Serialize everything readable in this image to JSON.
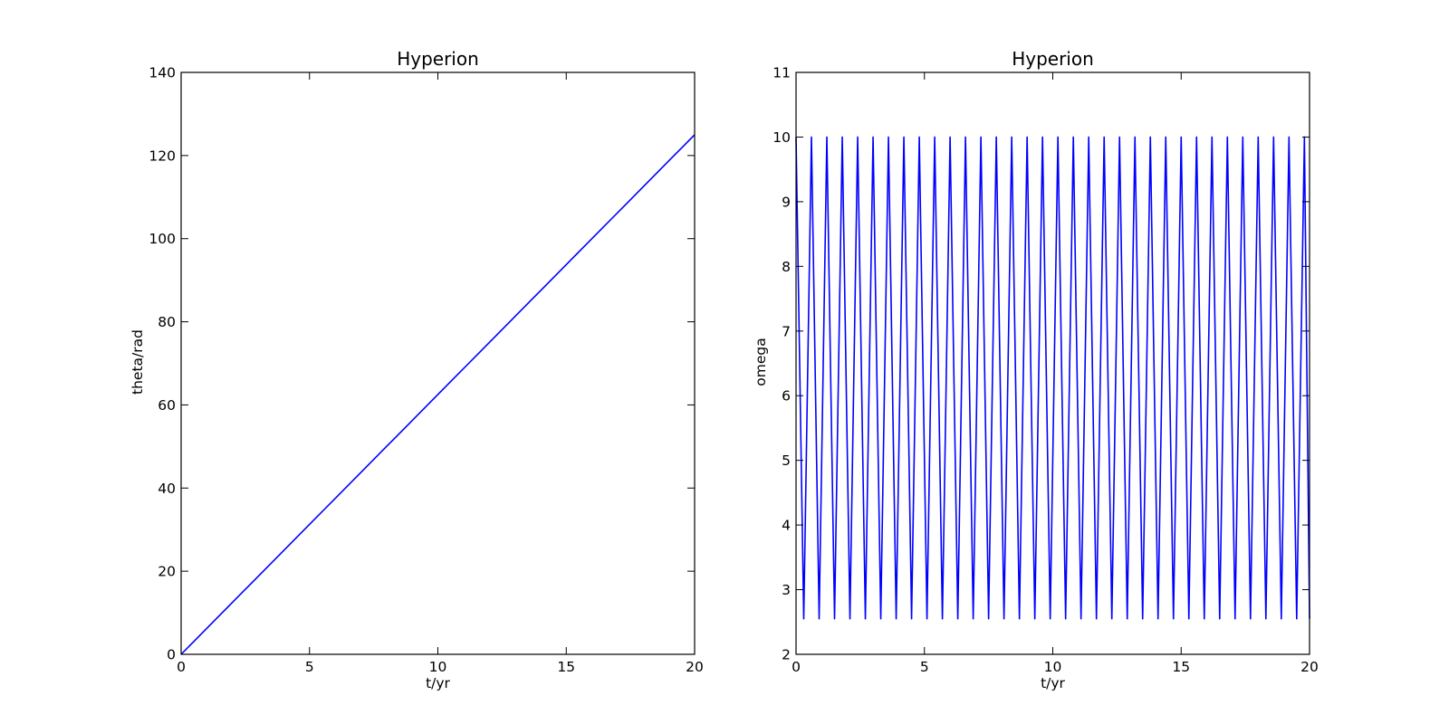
{
  "chart_data": [
    {
      "type": "line",
      "title": "Hyperion",
      "xlabel": "t/yr",
      "ylabel": "theta/rad",
      "xlim": [
        0,
        20
      ],
      "ylim": [
        0,
        140
      ],
      "xticks": [
        0,
        5,
        10,
        15,
        20
      ],
      "yticks": [
        0,
        20,
        40,
        60,
        80,
        100,
        120,
        140
      ],
      "xtick_labels": [
        "0",
        "5",
        "10",
        "15",
        "20"
      ],
      "ytick_labels": [
        "0",
        "20",
        "40",
        "60",
        "80",
        "100",
        "120",
        "140"
      ],
      "grid": false,
      "color": "#0000ff",
      "series": [
        {
          "x": [
            0,
            0.4,
            0.8,
            1.2,
            1.6,
            2.0,
            2.4,
            2.8,
            3.2,
            3.6,
            4.0,
            4.4,
            4.8,
            5.2,
            5.6,
            6.0,
            6.4,
            6.8,
            7.2,
            7.6,
            8.0,
            8.4,
            8.8,
            9.2,
            9.6,
            10.0,
            10.4,
            10.8,
            11.2,
            11.6,
            12.0,
            12.4,
            12.8,
            13.2,
            13.6,
            14.0,
            14.4,
            14.8,
            15.2,
            15.6,
            16.0,
            16.4,
            16.8,
            17.2,
            17.6,
            18.0,
            18.4,
            18.8,
            19.2,
            19.6,
            20.0
          ],
          "y": [
            0.0,
            2.5,
            5.0,
            7.5,
            10.0,
            12.5,
            15.0,
            17.5,
            20.0,
            22.5,
            25.0,
            27.5,
            30.0,
            32.5,
            35.0,
            37.5,
            40.0,
            42.5,
            45.0,
            47.5,
            50.0,
            52.5,
            55.0,
            57.5,
            60.0,
            62.5,
            65.0,
            67.5,
            70.0,
            72.5,
            75.0,
            77.5,
            80.0,
            82.5,
            85.0,
            87.5,
            90.0,
            92.5,
            95.0,
            97.5,
            100.0,
            102.5,
            105.0,
            107.5,
            110.0,
            112.5,
            115.0,
            117.5,
            120.0,
            122.5,
            125.0
          ]
        }
      ]
    },
    {
      "type": "line",
      "title": "Hyperion",
      "xlabel": "t/yr",
      "ylabel": "omega",
      "xlim": [
        0,
        20
      ],
      "ylim": [
        2,
        11
      ],
      "xticks": [
        0,
        5,
        10,
        15,
        20
      ],
      "yticks": [
        2,
        3,
        4,
        5,
        6,
        7,
        8,
        9,
        10,
        11
      ],
      "xtick_labels": [
        "0",
        "5",
        "10",
        "15",
        "20"
      ],
      "ytick_labels": [
        "2",
        "3",
        "4",
        "5",
        "6",
        "7",
        "8",
        "9",
        "10",
        "11"
      ],
      "grid": false,
      "color": "#0000ff",
      "series": [
        {
          "x": [
            0.0,
            0.3,
            0.6,
            0.9,
            1.2,
            1.5,
            1.8,
            2.1,
            2.4,
            2.7,
            3.0,
            3.3,
            3.6,
            3.9,
            4.2,
            4.5,
            4.8,
            5.1,
            5.4,
            5.7,
            6.0,
            6.3,
            6.6,
            6.9,
            7.2,
            7.5,
            7.8,
            8.1,
            8.4,
            8.7,
            9.0,
            9.3,
            9.6,
            9.9,
            10.2,
            10.5,
            10.8,
            11.1,
            11.4,
            11.7,
            12.0,
            12.3,
            12.6,
            12.9,
            13.2,
            13.5,
            13.8,
            14.1,
            14.4,
            14.7,
            15.0,
            15.3,
            15.6,
            15.9,
            16.2,
            16.5,
            16.8,
            17.1,
            17.4,
            17.7,
            18.0,
            18.3,
            18.6,
            18.9,
            19.2,
            19.5,
            19.8,
            20.0
          ],
          "y": [
            10.0,
            2.55,
            10.0,
            2.55,
            10.0,
            2.55,
            10.0,
            2.55,
            10.0,
            2.55,
            10.0,
            2.55,
            10.0,
            2.55,
            10.0,
            2.55,
            10.0,
            2.55,
            10.0,
            2.55,
            10.0,
            2.55,
            10.0,
            2.55,
            10.0,
            2.55,
            10.0,
            2.55,
            10.0,
            2.55,
            10.0,
            2.55,
            10.0,
            2.55,
            10.0,
            2.55,
            10.0,
            2.55,
            10.0,
            2.55,
            10.0,
            2.55,
            10.0,
            2.55,
            10.0,
            2.55,
            10.0,
            2.55,
            10.0,
            2.55,
            10.0,
            2.55,
            10.0,
            2.55,
            10.0,
            2.55,
            10.0,
            2.55,
            10.0,
            2.55,
            10.0,
            2.55,
            10.0,
            2.55,
            10.0,
            2.55,
            10.0,
            2.55
          ]
        }
      ]
    }
  ]
}
